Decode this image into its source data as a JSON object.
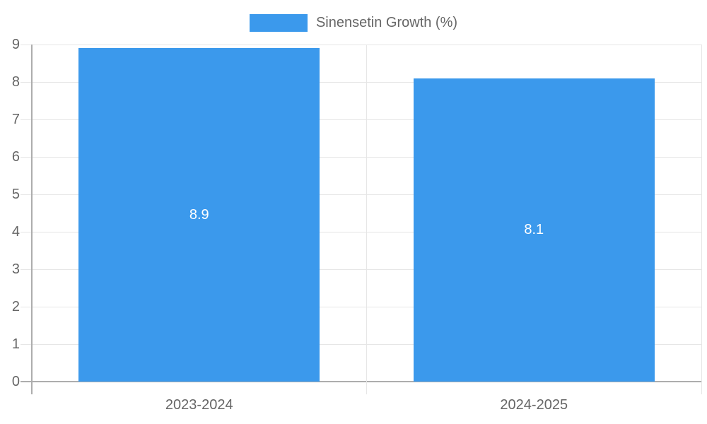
{
  "chart_data": {
    "type": "bar",
    "title": "",
    "legend_position": "top",
    "grid": true,
    "categories": [
      "2023-2024",
      "2024-2025"
    ],
    "series": [
      {
        "name": "Sinensetin Growth (%)",
        "values": [
          8.9,
          8.1
        ]
      }
    ],
    "bar_value_labels": [
      "8.9",
      "8.1"
    ],
    "ylim": [
      0,
      9
    ],
    "ytick_step": 1,
    "ytick_labels": [
      "0",
      "1",
      "2",
      "3",
      "4",
      "5",
      "6",
      "7",
      "8",
      "9"
    ],
    "xlabel": "",
    "ylabel": "",
    "colors": {
      "bar": "#3b99ec",
      "grid_line": "#e6e6e6",
      "axis_zero_line": "#adadad",
      "tick_text": "#666666",
      "bar_label_text": "#ffffff",
      "background": "#ffffff"
    }
  }
}
